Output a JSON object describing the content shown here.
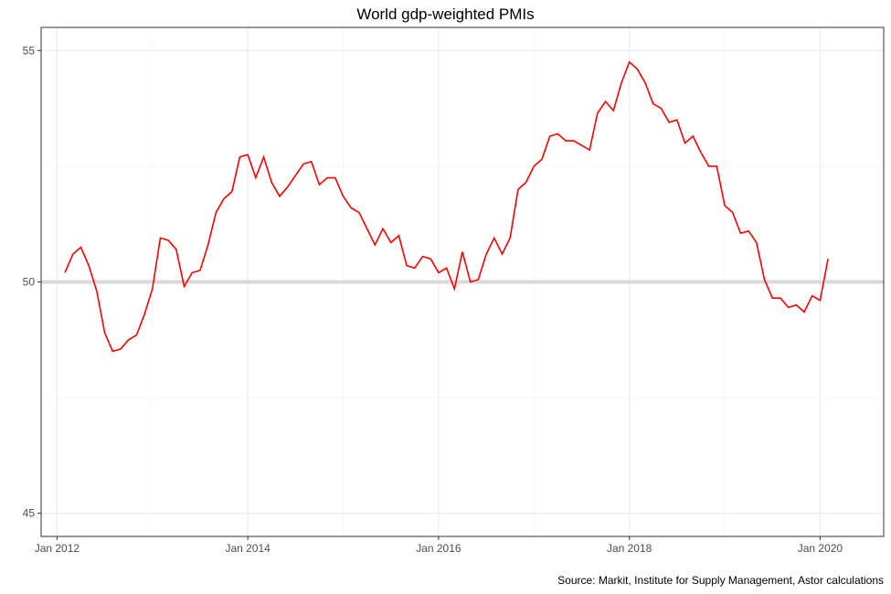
{
  "caption": "Source: Markit, Institute for Supply Management, Astor calculations",
  "chart_data": {
    "type": "line",
    "title": "World gdp-weighted PMIs",
    "xlabel": "",
    "ylabel": "",
    "x_ticks": [
      "Jan 2012",
      "Jan 2014",
      "Jan 2016",
      "Jan 2018",
      "Jan 2020"
    ],
    "y_ticks": [
      "45",
      "50",
      "55"
    ],
    "ylim": [
      44.5,
      55.5
    ],
    "xlim": [
      "2011-11",
      "2020-09"
    ],
    "grid": true,
    "reference_line": 50,
    "colors": {
      "series": "#ff0000",
      "reference": "#d9d9d9",
      "grid": "#ebebeb"
    },
    "series": [
      {
        "start": "2012-02",
        "values": [
          50.2,
          50.6,
          50.75,
          50.35,
          49.8,
          48.9,
          48.5,
          48.55,
          48.75,
          48.85,
          49.3,
          49.85,
          50.95,
          50.9,
          50.7,
          49.9,
          50.2,
          50.25,
          50.8,
          51.5,
          51.8,
          51.95,
          52.7,
          52.75,
          52.25,
          52.7,
          52.15,
          51.85,
          52.05,
          52.3,
          52.55,
          52.6,
          52.1,
          52.25,
          52.25,
          51.85,
          51.6,
          51.5,
          51.15,
          50.8,
          51.15,
          50.85,
          51.0,
          50.35,
          50.3,
          50.55,
          50.5,
          50.2,
          50.3,
          49.85,
          50.65,
          50.0,
          50.05,
          50.6,
          50.95,
          50.6,
          50.95,
          52.0,
          52.15,
          52.5,
          52.65,
          53.15,
          53.2,
          53.05,
          53.05,
          52.95,
          52.85,
          53.65,
          53.9,
          53.7,
          54.3,
          54.75,
          54.6,
          54.3,
          53.85,
          53.75,
          53.45,
          53.5,
          53.0,
          53.15,
          52.8,
          52.5,
          52.5,
          51.65,
          51.5,
          51.05,
          51.1,
          50.85,
          50.05,
          49.65,
          49.65,
          49.45,
          49.5,
          49.35,
          49.7,
          49.6,
          50.5
        ]
      }
    ]
  }
}
